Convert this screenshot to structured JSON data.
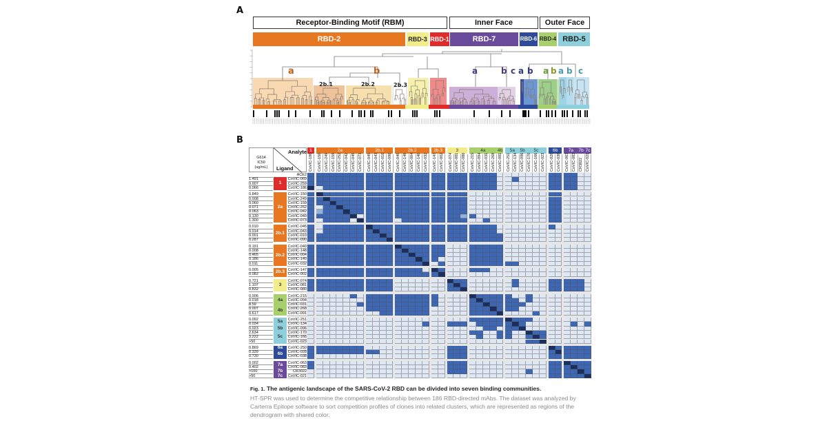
{
  "panel_a": {
    "label": "A",
    "regions": [
      {
        "label": "Receptor-Binding Motif (RBM)"
      },
      {
        "label": "Inner Face"
      },
      {
        "label": "Outer Face"
      }
    ],
    "communities": [
      {
        "label": "RBD-2",
        "color": "#e87722"
      },
      {
        "label": "RBD-3",
        "color": "#f3ec8a"
      },
      {
        "label": "RBD-1",
        "color": "#e02b2b"
      },
      {
        "label": "RBD-7",
        "color": "#6a4a9a"
      },
      {
        "label": "RBD-6",
        "color": "#2e4a9b"
      },
      {
        "label": "RBD-4",
        "color": "#a7cf6b"
      },
      {
        "label": "RBD-5",
        "color": "#8dd0dc"
      }
    ],
    "cluster_labels": [
      {
        "text": "a",
        "color": "#c0621a"
      },
      {
        "text": "b",
        "color": "#c0621a"
      },
      {
        "text": "2b.1",
        "color": "#222222"
      },
      {
        "text": "2b.2",
        "color": "#222222"
      },
      {
        "text": "2b.3",
        "color": "#222222"
      },
      {
        "text": "a",
        "color": "#4b3a7a"
      },
      {
        "text": "b",
        "color": "#4b3a7a"
      },
      {
        "text": "c",
        "color": "#4b3a7a"
      },
      {
        "text": "a",
        "color": "#2e3a7b"
      },
      {
        "text": "b",
        "color": "#2e3a7b"
      },
      {
        "text": "a",
        "color": "#6a9a3a"
      },
      {
        "text": "b",
        "color": "#8a9a2a"
      },
      {
        "text": "a",
        "color": "#4a9ab0"
      },
      {
        "text": "b",
        "color": "#4a9ab0"
      },
      {
        "text": "c",
        "color": "#4a9ab0"
      }
    ]
  },
  "panel_b": {
    "label": "B",
    "ic50_header": "G614\nIC50\n(ug/mL)",
    "analyte_label": "Analyte",
    "ligand_label": "Ligand",
    "colors": {
      "compete": "#3d66b3",
      "none": "#dfe7f2",
      "self": "#1a2f5e",
      "partial": "#93b2da"
    },
    "column_groups": [
      {
        "label": "1",
        "color": "#e02b2b",
        "count": 1
      },
      {
        "label": "2a",
        "color": "#e87722",
        "count": 7
      },
      {
        "label": "2b.1",
        "color": "#e87722",
        "count": 4
      },
      {
        "label": "2b.2",
        "color": "#e87722",
        "count": 5
      },
      {
        "label": "2b.3",
        "color": "#e87722",
        "count": 2
      },
      {
        "label": "3",
        "color": "#f3ec8a",
        "count": 3
      },
      {
        "label": "4a",
        "color": "#a7cf6b",
        "count": 4
      },
      {
        "label": "4b",
        "color": "#a7cf6b",
        "count": 1
      },
      {
        "label": "5a",
        "color": "#8dd0dc",
        "count": 2
      },
      {
        "label": "5b",
        "color": "#8dd0dc",
        "count": 1
      },
      {
        "label": "5c",
        "color": "#8dd0dc",
        "count": 3
      },
      {
        "label": "6b",
        "color": "#2e4a9b",
        "count": 2
      },
      {
        "label": "7a",
        "color": "#6a4a9a",
        "count": 2
      },
      {
        "label": "7b",
        "color": "#6a4a9a",
        "count": 1
      },
      {
        "label": "7c",
        "color": "#6a4a9a",
        "count": 1
      }
    ],
    "columns": [
      "CoVIC-186",
      "CoVIC-150",
      "CoVIC-249",
      "CoVIC-159",
      "CoVIC-252",
      "CoVIC-042",
      "CoVIC-049",
      "CoVIC-073",
      "CoVIC-045",
      "CoVIC-043",
      "CoVIC-010",
      "CoVIC-090",
      "CoVIC-040",
      "CoVIC-148",
      "CoVIC-004",
      "CoVIC-140",
      "CoVIC-032",
      "CoVIC-147",
      "CoVIC-002",
      "CoVIC-074",
      "CoVIC-081",
      "CoVIC-080",
      "CoVIC-215",
      "CoVIC-094",
      "CoVIC-031",
      "CoVIC-268",
      "CoVIC-091",
      "CoVIC-251",
      "CoVIC-134",
      "CoVIC-096",
      "CoVIC-170",
      "CoVIC-166",
      "CoVIC-023",
      "CoVIC-028",
      "CoVIC-038",
      "CoVIC-063",
      "CoVIC-083",
      "CR3022",
      "CoVIC-021"
    ],
    "row_groups": [
      {
        "label": "",
        "color": "#ffffff",
        "count": 1
      },
      {
        "label": "1",
        "color": "#e02b2b",
        "count": 3
      },
      {
        "label": "2a",
        "color": "#e87722",
        "count": 7
      },
      {
        "label": "2b.1",
        "color": "#e87722",
        "count": 4
      },
      {
        "label": "2b.2",
        "color": "#e87722",
        "count": 5
      },
      {
        "label": "2b.3",
        "color": "#e87722",
        "count": 2
      },
      {
        "label": "3",
        "color": "#f3ec8a",
        "count": 3
      },
      {
        "label": "4a",
        "color": "#a7cf6b",
        "count": 3
      },
      {
        "label": "4b",
        "color": "#a7cf6b",
        "count": 2
      },
      {
        "label": "5a",
        "color": "#8dd0dc",
        "count": 2
      },
      {
        "label": "5b",
        "color": "#8dd0dc",
        "count": 1
      },
      {
        "label": "5c",
        "color": "#8dd0dc",
        "count": 3
      },
      {
        "label": "6a",
        "color": "#2e4a9b",
        "count": 1
      },
      {
        "label": "6b",
        "color": "#2e4a9b",
        "count": 2
      },
      {
        "label": "7a",
        "color": "#6a4a9a",
        "count": 2
      },
      {
        "label": "7b",
        "color": "#6a4a9a",
        "count": 1
      },
      {
        "label": "7c",
        "color": "#6a4a9a",
        "count": 1
      }
    ],
    "rows": [
      {
        "name": "ACE2",
        "ic50": "",
        "cells": "1|1111111|1111|11111|11|111|1111|0|00|0|000|11|11|0|0"
      },
      {
        "name": "CoVIC-069",
        "ic50": "1.491",
        "cells": "1|1111111|1111|11111|11|111|1111|0|01|0|000|11|11|0|0"
      },
      {
        "name": "CoVIC-259",
        "ic50": "0.007",
        "cells": "1|1111111|1111|11111|11|111|1111|0|00|0|000|11|11|0|0"
      },
      {
        "name": "CoVIC-186",
        "ic50": "0.066",
        "cells": "2|0111111|1111|11111|11|111|1111|0|00|0|000|11|11|0|0"
      },
      {
        "name": "CoVIC-150",
        "ic50": "0.849",
        "cells": "1|2111111|1111|11111|11|111|0000|0|00|0|000|11|00|0|0"
      },
      {
        "name": "CoVIC-249",
        "ic50": "0.008",
        "cells": "1|1211111|1111|11111|11|111|0000|0|00|0|000|11|00|0|0"
      },
      {
        "name": "CoVIC-159",
        "ic50": "0.060",
        "cells": "1|1121111|1111|11111|11|111|0000|0|00|0|000|11|00|0|0"
      },
      {
        "name": "CoVIC-252",
        "ic50": "0.071",
        "cells": "1|0112111|1111|11111|11|111|0000|0|00|0|000|11|00|0|0"
      },
      {
        "name": "CoVIC-042",
        "ic50": "0.063",
        "cells": "1|3111211|1111|11111|11|111|0000|0|00|0|000|11|00|0|0"
      },
      {
        "name": "CoVIC-049",
        "ic50": "0.130",
        "cells": "1|1111120|1111|11111|11|113|1000|0|00|0|000|11|00|0|0"
      },
      {
        "name": "CoVIC-073",
        "ic50": "1.300",
        "cells": "1|0111102|1111|01111|11|111|0010|0|00|0|000|11|00|0|0"
      },
      {
        "name": "CoVIC-045",
        "ic50": "0.010",
        "cells": "1|0111111|2111|11111|11|111|1111|0|00|0|000|10|00|0|0"
      },
      {
        "name": "CoVIC-043",
        "ic50": "0.014",
        "cells": "1|0111111|1211|11111|11|111|1111|0|00|0|000|00|00|0|0"
      },
      {
        "name": "CoVIC-010",
        "ic50": "0.001",
        "cells": "1|1111111|1121|11111|11|111|1111|1|00|0|000|00|00|0|0"
      },
      {
        "name": "CoVIC-090",
        "ic50": "0.287",
        "cells": "1|1111111|1112|11111|11|111|1111|1|00|0|000|00|00|0|0"
      },
      {
        "name": "CoVIC-040",
        "ic50": "0.191",
        "cells": "1|1111111|1111|21111|11|000|1111|1|00|0|000|00|00|0|0"
      },
      {
        "name": "CoVIC-148",
        "ic50": "0.008",
        "cells": "1|1111111|1111|12111|11|000|1111|1|00|0|000|00|00|0|0"
      },
      {
        "name": "CoVIC-004",
        "ic50": "0.465",
        "cells": "1|1111111|1111|11211|11|000|1111|1|00|0|000|00|00|0|0"
      },
      {
        "name": "CoVIC-140",
        "ic50": "0.186",
        "cells": "1|1111111|1111|11121|10|000|1111|1|00|0|000|00|00|0|0"
      },
      {
        "name": "CoVIC-032",
        "ic50": "0.011",
        "cells": "1|1111111|1111|11112|01|000|1111|1|11|0|000|00|00|0|0"
      },
      {
        "name": "CoVIC-147",
        "ic50": "0.005",
        "cells": "1|1111111|1111|11110|21|000|1110|0|00|0|000|00|00|0|0"
      },
      {
        "name": "CoVIC-002",
        "ic50": "0.082",
        "cells": "1|1111111|1111|11111|12|000|0000|0|00|0|000|00|00|0|0"
      },
      {
        "name": "CoVIC-074",
        "ic50": "0.721",
        "cells": "1|1111111|1111|00000|00|211|0000|0|01|0|000|11|11|1|0"
      },
      {
        "name": "CoVIC-081",
        "ic50": "1.107",
        "cells": "1|1111111|1111|00000|00|121|0000|0|01|0|000|11|11|1|0"
      },
      {
        "name": "CoVIC-080",
        "ic50": "0.832",
        "cells": "1|1111111|1111|00000|00|112|0000|0|00|0|000|11|11|1|0"
      },
      {
        "name": "CoVIC-215",
        "ic50": "0.006",
        "cells": "0|0000010|1111|11111|10|000|2111|1|10|0|100|00|00|0|0"
      },
      {
        "name": "CoVIC-094",
        "ic50": "0.018",
        "cells": "0|0000000|1111|11111|10|000|1211|1|11|0|100|00|00|0|0"
      },
      {
        "name": "CoVIC-031",
        "ic50": "8.59",
        "cells": "0|0000001|1111|11111|10|000|1121|1|11|1|000|00|00|0|0"
      },
      {
        "name": "CoVIC-268",
        "ic50": "0.007",
        "cells": "0|0000000|1111|11111|00|000|1112|1|11|0|000|00|00|0|0"
      },
      {
        "name": "CoVIC-091",
        "ic50": "0.617",
        "cells": "0|0000000|0011|11111|00|000|1111|2|00|0|010|00|00|0|0"
      },
      {
        "name": "CoVIC-251",
        "ic50": "0.092",
        "cells": "0|0000000|0000|00000|00|000|1111|1|21|1|100|00|00|0|0"
      },
      {
        "name": "CoVIC-134",
        "ic50": "0.034",
        "cells": "0|0000000|0000|00001|00|111|0111|1|12|1|000|00|01|0|1"
      },
      {
        "name": "CoVIC-096",
        "ic50": "0.023",
        "cells": "0|0000000|0000|00000|00|000|0011|0|11|2|000|00|00|0|0"
      },
      {
        "name": "CoVIC-170",
        "ic50": "2.634",
        "cells": "0|0000000|0000|00000|00|000|1100|1|10|0|211|00|00|0|0"
      },
      {
        "name": "CoVIC-166",
        "ic50": "3.222",
        "cells": "0|0000000|0000|00000|00|000|0100|1|10|0|121|00|00|0|0"
      },
      {
        "name": "CoVIC-023",
        "ic50": ">50",
        "cells": "0|0000000|0000|00000|00|000|0000|0|00|0|112|00|00|0|0"
      },
      {
        "name": "CoVIC-250",
        "ic50": "0.869",
        "cells": "1|1111111|0000|00000|00|111|0000|0|00|0|000|21|11|1|1"
      },
      {
        "name": "CoVIC-028",
        "ic50": "0.339",
        "cells": "1|1111111|1100|00000|00|111|0000|0|00|0|000|12|11|1|1"
      },
      {
        "name": "CoVIC-038",
        "ic50": "0.730",
        "cells": "1|0000000|0000|00000|00|111|0000|0|00|0|000|11|11|1|1"
      },
      {
        "name": "CoVIC-063",
        "ic50": "0.002",
        "cells": "1|0000000|0000|00000|00|111|0000|0|00|0|000|11|21|1|1"
      },
      {
        "name": "CoVIC-083",
        "ic50": "0.402",
        "cells": "1|0000000|0000|00000|00|111|0000|0|00|0|000|11|12|1|1"
      },
      {
        "name": "CR3022",
        "ic50": ">100",
        "cells": "0|0000000|0000|00000|00|111|0000|0|00|0|100|11|11|2|1"
      },
      {
        "name": "CoVIC-021",
        "ic50": ">50",
        "cells": "0|0000000|0000|00000|00|000|0000|0|00|0|000|11|11|1|2"
      }
    ]
  },
  "caption": {
    "fig_label": "Fig. 1.",
    "title": "The antigenic landscape of the SARS-CoV-2 RBD can be divided into seven binding communities.",
    "body": "HT-SPR was used to determine the competitive relationship between 186 RBD-directed mAbs. The dataset was analyzed by Carterra Epitope software to sort competition profiles of clones into related clusters, which are represented as regions of the dendrogram with shared color."
  }
}
